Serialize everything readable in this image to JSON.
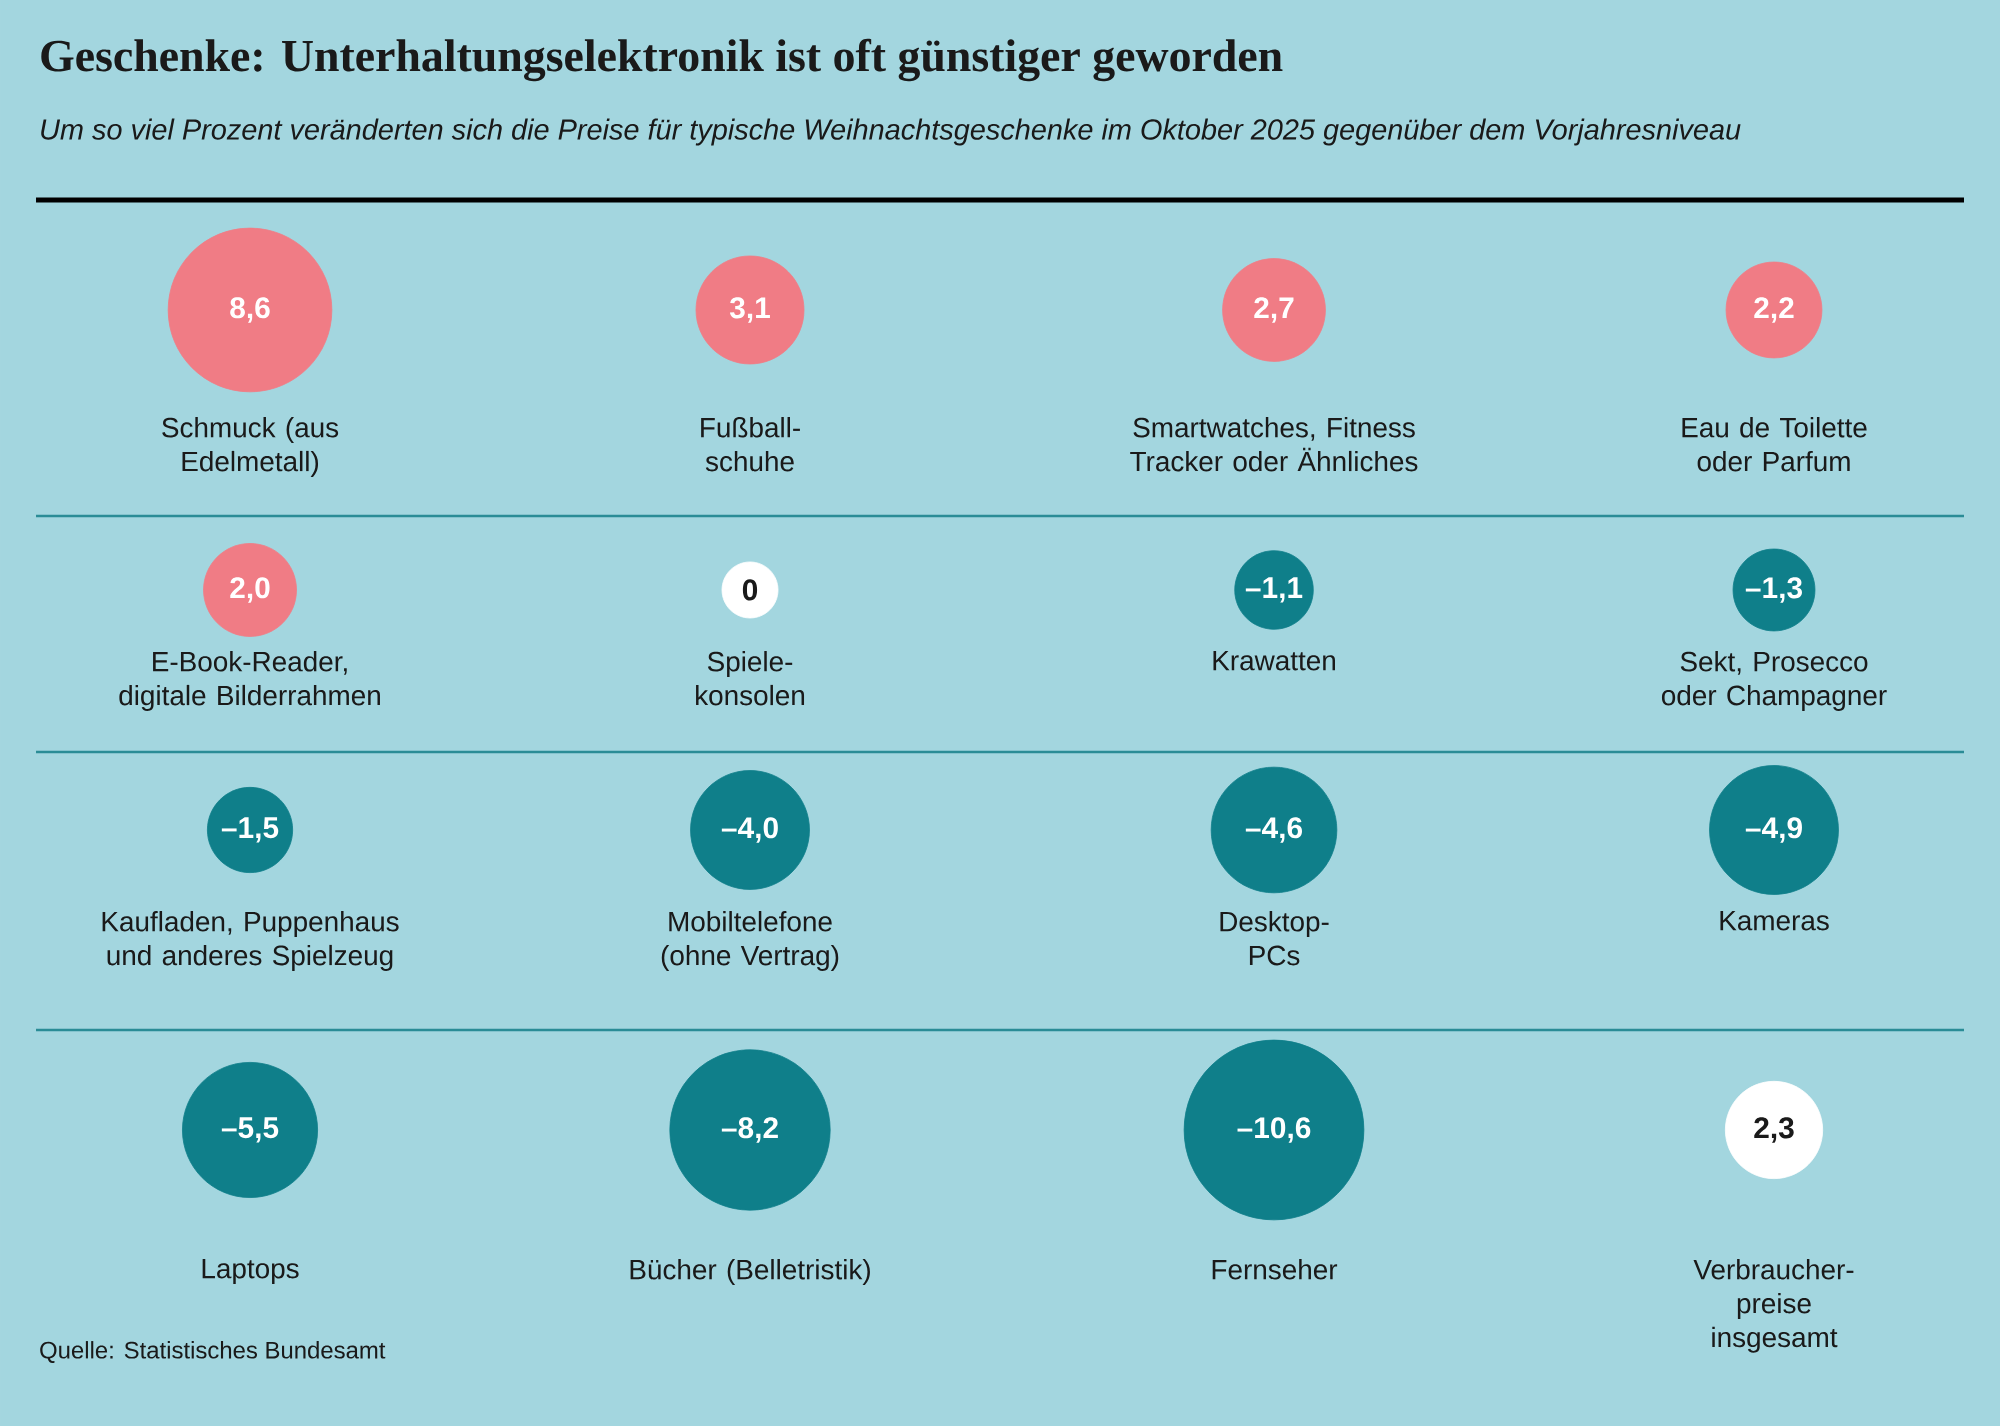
{
  "chart_data": {
    "type": "other",
    "title": "Geschenke: Unterhaltungselektronik ist oft günstiger geworden",
    "subtitle": "Um so viel Prozent veränderten sich die Preise für typische Weihnachtsgeschenke im Oktober 2025 gegenüber dem Vorjahresniveau",
    "categories": [
      "Schmuck (aus Edelmetall)",
      "Fußball-schuhe",
      "Smartwatches, Fitness Tracker oder Ähnliches",
      "Eau de Toilette oder Parfum",
      "E-Book-Reader, digitale Bilderrahmen",
      "Spiele-konsolen",
      "Krawatten",
      "Sekt, Prosecco oder Champagner",
      "Kaufladen, Puppenhaus und anderes Spielzeug",
      "Mobiltelefone (ohne Vertrag)",
      "Desktop-PCs",
      "Kameras",
      "Laptops",
      "Bücher (Belletristik)",
      "Fernseher",
      "Verbraucher-preise insgesamt"
    ],
    "values": [
      8.6,
      3.1,
      2.7,
      2.2,
      2.0,
      0,
      -1.1,
      -1.3,
      -1.5,
      -4.0,
      -4.6,
      -4.9,
      -5.5,
      -8.2,
      -10.6,
      2.3
    ],
    "value_labels": [
      "8,6",
      "3,1",
      "2,7",
      "2,2",
      "2,0",
      "0",
      "–1,1",
      "–1,3",
      "–1,5",
      "–4,0",
      "–4,6",
      "–4,9",
      "–5,5",
      "–8,2",
      "–10,6",
      "2,3"
    ],
    "colors": [
      "#f07c85",
      "#f07c85",
      "#f07c85",
      "#f07c85",
      "#f07c85",
      "#ffffff",
      "#0f7f8a",
      "#0f7f8a",
      "#0f7f8a",
      "#0f7f8a",
      "#0f7f8a",
      "#0f7f8a",
      "#0f7f8a",
      "#0f7f8a",
      "#0f7f8a",
      "#ffffff"
    ],
    "annotations": [
      "Quelle: Statistisches Bundesamt"
    ]
  }
}
